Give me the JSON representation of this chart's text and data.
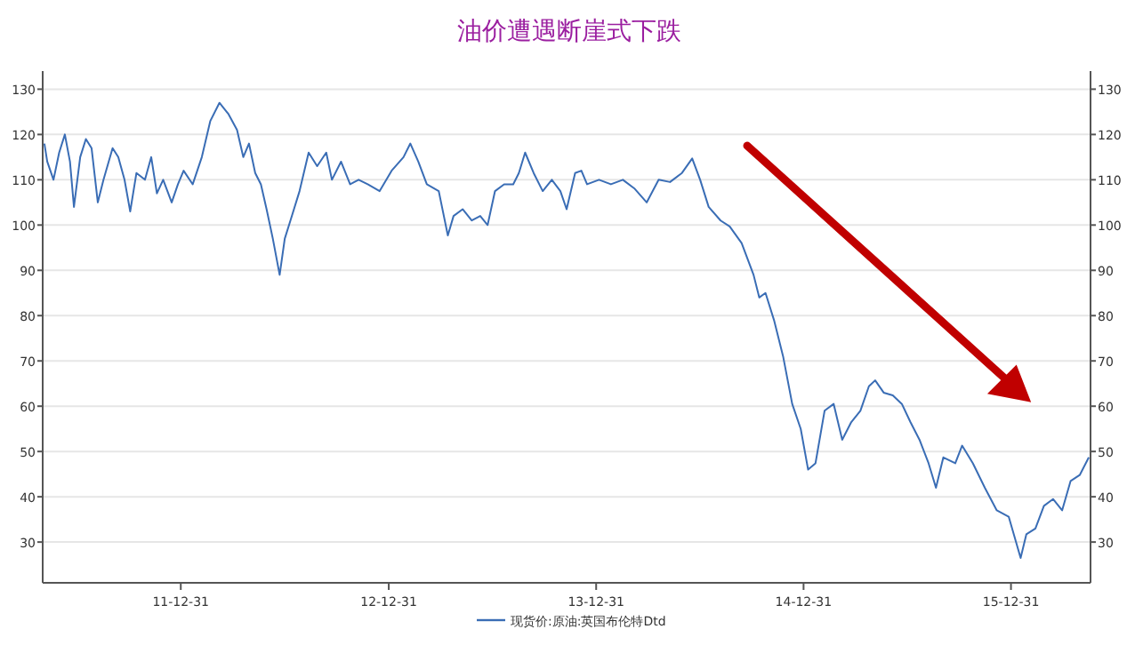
{
  "chart_data": {
    "type": "line",
    "title": "油价遭遇断崖式下跌",
    "x": [
      "2011-05-05",
      "2011-05-10",
      "2011-05-21",
      "2011-05-31",
      "2011-06-10",
      "2011-06-19",
      "2011-06-26",
      "2011-07-07",
      "2011-07-17",
      "2011-07-27",
      "2011-08-07",
      "2011-08-17",
      "2011-09-02",
      "2011-09-12",
      "2011-09-23",
      "2011-10-03",
      "2011-10-14",
      "2011-10-29",
      "2011-11-09",
      "2011-11-19",
      "2011-11-30",
      "2011-12-15",
      "2011-12-26",
      "2012-01-05",
      "2012-01-21",
      "2012-02-06",
      "2012-02-21",
      "2012-03-08",
      "2012-03-24",
      "2012-04-08",
      "2012-04-19",
      "2012-04-29",
      "2012-05-10",
      "2012-05-20",
      "2012-05-30",
      "2012-06-10",
      "2012-06-22",
      "2012-07-01",
      "2012-07-11",
      "2012-07-27",
      "2012-08-12",
      "2012-08-27",
      "2012-09-12",
      "2012-09-22",
      "2012-10-08",
      "2012-10-24",
      "2012-11-08",
      "2012-11-24",
      "2012-12-15",
      "2013-01-05",
      "2013-01-26",
      "2013-02-07",
      "2013-02-21",
      "2013-03-08",
      "2013-03-29",
      "2013-04-14",
      "2013-04-24",
      "2013-05-10",
      "2013-05-26",
      "2013-06-10",
      "2013-06-23",
      "2013-07-06",
      "2013-07-22",
      "2013-08-07",
      "2013-08-17",
      "2013-08-28",
      "2013-09-12",
      "2013-09-28",
      "2013-10-14",
      "2013-10-29",
      "2013-11-09",
      "2013-11-24",
      "2013-12-05",
      "2013-12-15",
      "2014-01-05",
      "2014-01-26",
      "2014-02-16",
      "2014-03-09",
      "2014-03-30",
      "2014-04-20",
      "2014-05-10",
      "2014-05-31",
      "2014-06-18",
      "2014-07-02",
      "2014-07-17",
      "2014-08-07",
      "2014-08-23",
      "2014-09-13",
      "2014-10-04",
      "2014-10-14",
      "2014-10-25",
      "2014-11-09",
      "2014-11-25",
      "2014-12-11",
      "2014-12-26",
      "2015-01-08",
      "2015-01-21",
      "2015-02-06",
      "2015-02-22",
      "2015-03-09",
      "2015-03-25",
      "2015-04-10",
      "2015-04-25",
      "2015-05-06",
      "2015-05-21",
      "2015-06-06",
      "2015-06-22",
      "2015-07-07",
      "2015-07-23",
      "2015-08-08",
      "2015-08-21",
      "2015-09-03",
      "2015-09-24",
      "2015-10-06",
      "2015-10-25",
      "2015-11-15",
      "2015-12-06",
      "2015-12-27",
      "2016-01-17",
      "2016-01-27",
      "2016-02-12",
      "2016-02-27",
      "2016-03-14",
      "2016-03-30",
      "2016-04-14",
      "2016-04-30",
      "2016-05-16"
    ],
    "series": [
      {
        "name": "现货价:原油:英国布伦特Dtd",
        "color": "#3a6db5",
        "values": [
          118,
          114,
          110,
          116,
          120,
          114,
          104,
          115,
          119,
          117,
          105,
          110,
          117,
          115,
          110,
          103,
          111.5,
          110,
          115,
          107,
          110,
          105,
          109,
          112,
          109,
          115,
          123,
          127,
          124.5,
          121,
          115,
          118,
          111.5,
          109,
          103.5,
          97,
          89,
          97,
          101,
          107.5,
          116,
          113,
          116,
          110,
          114,
          109,
          110,
          109,
          107.5,
          112,
          115,
          118,
          114,
          109,
          107.5,
          97.7,
          102,
          103.5,
          101,
          102,
          100,
          107.5,
          109,
          109,
          111.5,
          116,
          111.5,
          107.5,
          110,
          107.5,
          103.5,
          111.5,
          112,
          109,
          110,
          109,
          110,
          108,
          105,
          110,
          109.5,
          111.5,
          114.7,
          110,
          104,
          101,
          99.7,
          96,
          89,
          84,
          85,
          79,
          71,
          60.5,
          55,
          46,
          47.4,
          59,
          60.5,
          52.6,
          56.5,
          59,
          64.4,
          65.7,
          63,
          62.4,
          60.5,
          56.5,
          52.6,
          47.4,
          42,
          48.7,
          47.4,
          51.3,
          47.4,
          42,
          37,
          35.6,
          26.5,
          31.7,
          33,
          38,
          39.5,
          37,
          43.5,
          44.8,
          48.7
        ]
      }
    ],
    "xlim": [
      "2011-05-02",
      "2016-05-19"
    ],
    "xticks": [
      {
        "value": "2011-12-31",
        "label": "11-12-31"
      },
      {
        "value": "2012-12-31",
        "label": "12-12-31"
      },
      {
        "value": "2013-12-31",
        "label": "13-12-31"
      },
      {
        "value": "2014-12-31",
        "label": "14-12-31"
      },
      {
        "value": "2015-12-31",
        "label": "15-12-31"
      }
    ],
    "ylim": [
      21,
      134
    ],
    "yticks": [
      30,
      40,
      50,
      60,
      70,
      80,
      90,
      100,
      110,
      120,
      130
    ],
    "y2lim": [
      21,
      134
    ],
    "y2ticks": [
      30,
      40,
      50,
      60,
      70,
      80,
      90,
      100,
      110,
      120,
      130
    ],
    "grid": "y",
    "legend": "bottom",
    "marker": "none",
    "line_style": "solid"
  }
}
